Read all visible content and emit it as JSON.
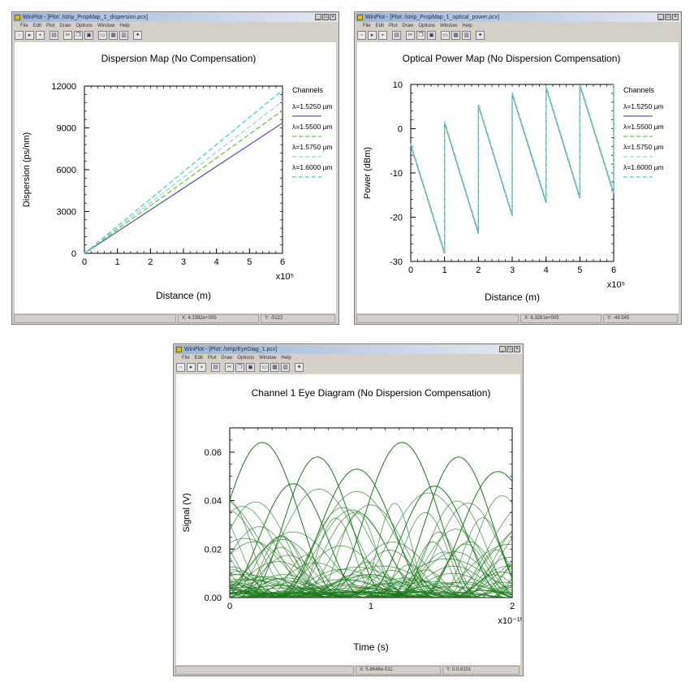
{
  "windows": [
    {
      "title": "WinPlot - [Plot: /strip_PropMap_1_dispersion.pcx]",
      "menu": [
        "File",
        "Edit",
        "Plot",
        "Draw",
        "Options",
        "Window",
        "Help"
      ],
      "status": [
        "",
        "X: 4.3382e+005",
        "Y: -5122"
      ]
    },
    {
      "title": "WinPlot - [Plot: /strip_PropMap_1_optical_power.pcx]",
      "menu": [
        "File",
        "Edit",
        "Plot",
        "Draw",
        "Options",
        "Window",
        "Help"
      ],
      "status": [
        "",
        "X: 6.3261e+005",
        "Y: -49.545"
      ]
    },
    {
      "title": "WinPlot - [Plot: /strip/EyeDiag_1.pcx]",
      "menu": [
        "File",
        "Edit",
        "Plot",
        "Draw",
        "Options",
        "Window",
        "Help"
      ],
      "status": [
        "",
        "X: 5.8646e-011",
        "Y: 0.0.6101"
      ]
    }
  ],
  "colors": {
    "ch1": "#5560b0",
    "ch2": "#66cc44",
    "ch3": "#9ad8d0",
    "ch4": "#44d4d8",
    "power": "#50a890",
    "eye": "#1a7a1a",
    "window_bg": "#d4d0c8"
  },
  "chart_data": [
    {
      "type": "line",
      "title": "Dispersion Map (No Compensation)",
      "xlabel": "Distance (m)",
      "ylabel": "Dispersion (ps/nm)",
      "x_multiplier": "x10⁵",
      "xlim": [
        0,
        6
      ],
      "ylim": [
        0,
        12000
      ],
      "xticks": [
        0,
        1,
        2,
        3,
        4,
        5,
        6
      ],
      "yticks": [
        0,
        3000,
        6000,
        9000,
        12000
      ],
      "legend_title": "Channels",
      "legend_position": "right",
      "series": [
        {
          "name": "λ=1.5250 µm",
          "x": [
            0,
            6
          ],
          "y": [
            0,
            9350
          ],
          "style": "solid"
        },
        {
          "name": "λ=1.5500 µm",
          "x": [
            0,
            6
          ],
          "y": [
            0,
            10250
          ],
          "style": "dashed"
        },
        {
          "name": "λ=1.5750 µm",
          "x": [
            0,
            6
          ],
          "y": [
            0,
            10900
          ],
          "style": "dashed"
        },
        {
          "name": "λ=1.6000 µm",
          "x": [
            0,
            6
          ],
          "y": [
            0,
            11700
          ],
          "style": "dashed"
        }
      ]
    },
    {
      "type": "line",
      "title": "Optical Power Map (No Dispersion Compensation)",
      "xlabel": "Distance (m)",
      "ylabel": "Power (dBm)",
      "x_multiplier": "x10⁵",
      "xlim": [
        0,
        6
      ],
      "ylim": [
        -30,
        10
      ],
      "xticks": [
        0,
        1,
        2,
        3,
        4,
        5,
        6
      ],
      "yticks": [
        -30,
        -20,
        -10,
        0,
        10
      ],
      "legend_title": "Channels",
      "legend_position": "right",
      "series_names": [
        "λ=1.5250 µm",
        "λ=1.5500 µm",
        "λ=1.5750 µm",
        "λ=1.6000 µm"
      ],
      "series_styles": [
        "solid",
        "dashed",
        "dashed",
        "dashed"
      ],
      "x": [
        0,
        1,
        1,
        2,
        2,
        3,
        3,
        4,
        4,
        5,
        5,
        6,
        6
      ],
      "y": [
        -3.5,
        -28,
        1.5,
        -23.5,
        5.5,
        -19.5,
        8,
        -16.5,
        9.5,
        -15.5,
        10,
        -14.5,
        10
      ]
    },
    {
      "type": "line",
      "title": "Channel 1 Eye Diagram (No Dispersion Compensation)",
      "xlabel": "Time (s)",
      "ylabel": "Signal (V)",
      "x_multiplier": "x10⁻¹⁰",
      "xlim": [
        0,
        2
      ],
      "ylim": [
        0,
        0.07
      ],
      "xticks": [
        0,
        1,
        2
      ],
      "yticks": [
        0,
        0.02,
        0.04,
        0.06
      ],
      "ytick_labels": [
        "0.00",
        "0.02",
        "0.04",
        "0.06"
      ],
      "traces_description_peaks": [
        {
          "peak_x": 0.23,
          "peak_y": 0.064,
          "width": 0.55
        },
        {
          "peak_x": 1.22,
          "peak_y": 0.064,
          "width": 0.55
        },
        {
          "peak_x": 0.62,
          "peak_y": 0.058,
          "width": 0.5
        },
        {
          "peak_x": 1.62,
          "peak_y": 0.058,
          "width": 0.5
        },
        {
          "peak_x": 0.9,
          "peak_y": 0.053,
          "width": 0.55
        },
        {
          "peak_x": 1.9,
          "peak_y": 0.052,
          "width": 0.55
        },
        {
          "peak_x": 0.45,
          "peak_y": 0.047,
          "width": 0.5
        },
        {
          "peak_x": 1.45,
          "peak_y": 0.046,
          "width": 0.5
        }
      ]
    }
  ]
}
